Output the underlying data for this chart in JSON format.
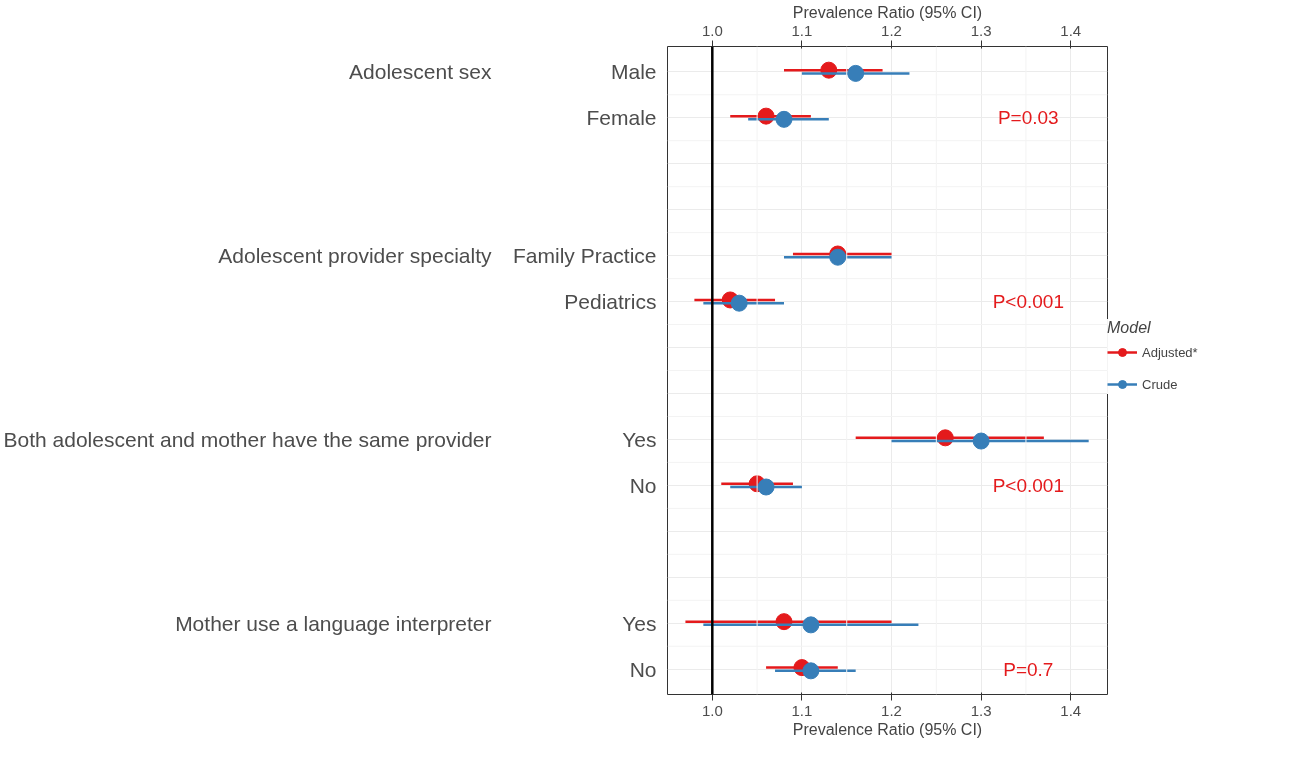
{
  "chart_data": {
    "type": "scatter",
    "orientation": "horizontal",
    "xlabel": "Prevalence Ratio (95% CI)",
    "x2label": "Prevalence Ratio (95% CI)",
    "legend_title": "Model",
    "categories": [
      "Male",
      "Female",
      null,
      null,
      "Family Practice",
      "Pediatrics",
      null,
      null,
      "Yes",
      "No",
      null,
      null,
      "Yes",
      "No"
    ],
    "xlim": [
      0.95,
      1.441
    ],
    "xticks": [
      {
        "value": 1.0,
        "label": "1.0"
      },
      1.1,
      1.2,
      1.3,
      1.4
    ],
    "x2lim": [
      0.95,
      1.441
    ],
    "x2ticks": [
      {
        "value": 1.0,
        "label": "1.0"
      },
      1.1,
      1.2,
      1.3,
      1.4
    ],
    "series": [
      {
        "name": "Adjusted*",
        "color": "#e41a1c",
        "values": [
          1.13,
          1.06,
          null,
          null,
          1.14,
          1.02,
          null,
          null,
          1.26,
          1.05,
          null,
          null,
          1.08,
          1.1
        ],
        "errors": [
          [
            1.08,
            1.19
          ],
          [
            1.02,
            1.11
          ],
          null,
          null,
          [
            1.09,
            1.2
          ],
          [
            0.98,
            1.07
          ],
          null,
          null,
          [
            1.16,
            1.37
          ],
          [
            1.01,
            1.09
          ],
          null,
          null,
          [
            0.97,
            1.2
          ],
          [
            1.06,
            1.14
          ]
        ]
      },
      {
        "name": "Crude",
        "color": "#377eb8",
        "values": [
          1.16,
          1.08,
          null,
          null,
          1.14,
          1.03,
          null,
          null,
          1.3,
          1.06,
          null,
          null,
          1.11,
          1.11
        ],
        "errors": [
          [
            1.1,
            1.22
          ],
          [
            1.04,
            1.13
          ],
          null,
          null,
          [
            1.08,
            1.2
          ],
          [
            0.99,
            1.08
          ],
          null,
          null,
          [
            1.2,
            1.42
          ],
          [
            1.02,
            1.1
          ],
          null,
          null,
          [
            0.99,
            1.23
          ],
          [
            1.07,
            1.16
          ]
        ]
      }
    ],
    "ref_lines": [
      {
        "axis": "x",
        "value": 1.0,
        "color": "#000000"
      }
    ],
    "annotations": [
      "Adolescent sex",
      "Adolescent provider specialty",
      "Both adolescent and mother have the same provider",
      "Mother use a language interpreter",
      "P=0.03",
      "P<0.001",
      "P<0.001",
      "P=0.7"
    ],
    "grid": true,
    "legend": "right",
    "marker": "circle"
  }
}
